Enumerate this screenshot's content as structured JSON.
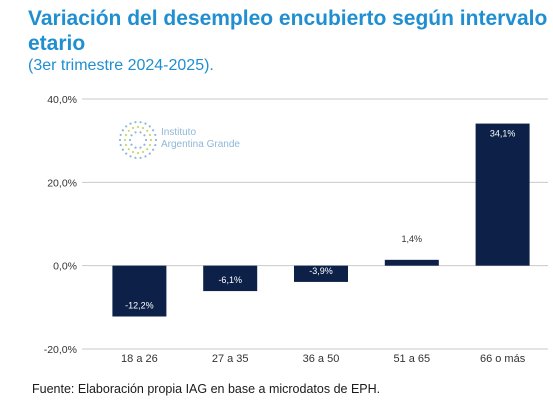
{
  "header": {
    "title": "Variación del desempleo encubierto según intervalo etario",
    "subtitle": "(3er trimestre 2024-2025)."
  },
  "logo": {
    "line1": "Instituto",
    "line2": "Argentina Grande",
    "color": "#8fb7d6"
  },
  "footer": {
    "source": "Fuente: Elaboración propia IAG en base a microdatos de EPH."
  },
  "colors": {
    "bar": "#0d2148",
    "title": "#1f8fd1",
    "grid": "#c9c9c9"
  },
  "chart_data": {
    "type": "bar",
    "categories": [
      "18 a 26",
      "27 a 35",
      "36 a 50",
      "51 a 65",
      "66 o más"
    ],
    "values": [
      -12.2,
      -6.1,
      -3.9,
      1.4,
      34.1
    ],
    "value_labels": [
      "-12,2%",
      "-6,1%",
      "-3,9%",
      "1,4%",
      "34,1%"
    ],
    "yticks": [
      -20,
      0,
      20,
      40
    ],
    "ytick_labels": [
      "-20,0%",
      "0,0%",
      "20,0%",
      "40,0%"
    ],
    "ylim": [
      -20,
      40
    ],
    "grid": true,
    "legend": "none"
  }
}
